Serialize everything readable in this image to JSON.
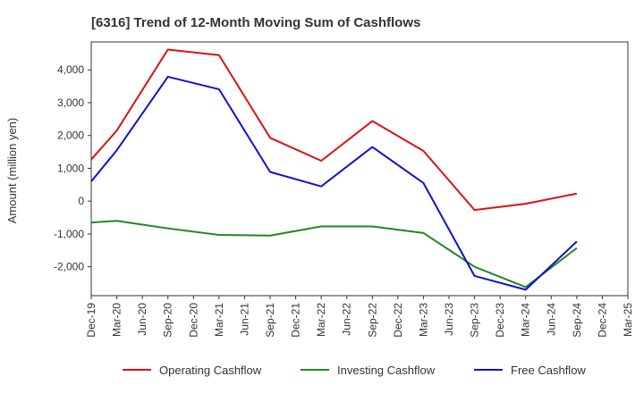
{
  "chart_data": {
    "type": "line",
    "title": "[6316]  Trend of 12-Month Moving Sum of Cashflows",
    "xlabel": "",
    "ylabel": "Amount (million yen)",
    "categories": [
      "Dec-19",
      "Mar-20",
      "Jun-20",
      "Sep-20",
      "Dec-20",
      "Mar-21",
      "Jun-21",
      "Sep-21",
      "Dec-21",
      "Mar-22",
      "Jun-22",
      "Sep-22",
      "Dec-22",
      "Mar-23",
      "Jun-23",
      "Sep-23",
      "Dec-23",
      "Mar-24",
      "Jun-24",
      "Sep-24",
      "Dec-24",
      "Mar-25"
    ],
    "yticks": [
      4000,
      3000,
      2000,
      1000,
      0,
      -1000,
      -2000
    ],
    "ytick_labels": [
      "4,000",
      "3,000",
      "2,000",
      "1,000",
      "0",
      "-1,000",
      "-2,000"
    ],
    "ylim": [
      -2880,
      4850
    ],
    "grid": true,
    "legend_position": "bottom",
    "series": [
      {
        "name": "Operating Cashflow",
        "color": "#dd1111",
        "points": [
          [
            0,
            1270
          ],
          [
            1,
            2150
          ],
          [
            3,
            4620
          ],
          [
            5,
            4450
          ],
          [
            7,
            1930
          ],
          [
            9,
            1230
          ],
          [
            11,
            2440
          ],
          [
            13,
            1530
          ],
          [
            15,
            -270
          ],
          [
            17,
            -80
          ],
          [
            19,
            230
          ]
        ]
      },
      {
        "name": "Investing Cashflow",
        "color": "#228822",
        "points": [
          [
            0,
            -650
          ],
          [
            1,
            -600
          ],
          [
            3,
            -830
          ],
          [
            5,
            -1030
          ],
          [
            7,
            -1050
          ],
          [
            9,
            -770
          ],
          [
            11,
            -770
          ],
          [
            13,
            -970
          ],
          [
            15,
            -2000
          ],
          [
            17,
            -2620
          ],
          [
            19,
            -1430
          ]
        ]
      },
      {
        "name": "Free Cashflow",
        "color": "#1111cc",
        "points": [
          [
            0,
            600
          ],
          [
            1,
            1550
          ],
          [
            3,
            3790
          ],
          [
            5,
            3410
          ],
          [
            7,
            890
          ],
          [
            9,
            450
          ],
          [
            11,
            1650
          ],
          [
            13,
            550
          ],
          [
            15,
            -2280
          ],
          [
            17,
            -2700
          ],
          [
            19,
            -1230
          ]
        ]
      }
    ]
  }
}
